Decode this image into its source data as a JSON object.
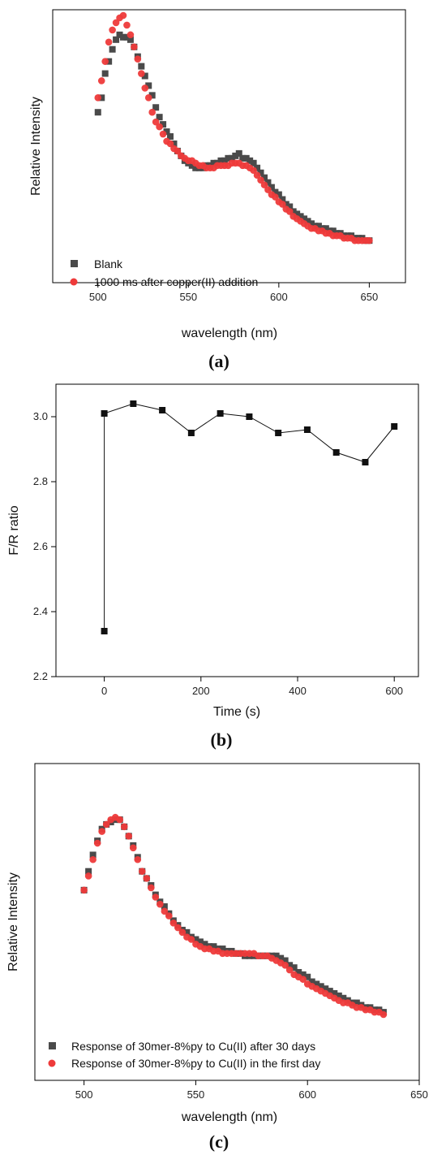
{
  "colors": {
    "blank_series": "#4a4a4a",
    "copper_series": "#ee3a3a",
    "ratio_series": "#111111",
    "axis": "#000000"
  },
  "chart_data": [
    {
      "panel": "(a)",
      "type": "scatter",
      "xlabel": "wavelength (nm)",
      "ylabel": "Relative Intensity",
      "xlim": [
        475,
        670
      ],
      "xticks": [
        "500",
        "550",
        "600",
        "650"
      ],
      "y_ticks_shown": false,
      "ylim": [
        0,
        1.0
      ],
      "legend_position": "bottom-left",
      "series": [
        {
          "name": "Blank",
          "marker": "square",
          "x": [
            500,
            502,
            504,
            506,
            508,
            510,
            512,
            514,
            516,
            518,
            520,
            522,
            524,
            526,
            528,
            530,
            532,
            534,
            536,
            538,
            540,
            542,
            544,
            546,
            548,
            550,
            552,
            554,
            556,
            558,
            560,
            562,
            564,
            566,
            568,
            570,
            572,
            574,
            576,
            578,
            580,
            582,
            584,
            586,
            588,
            590,
            592,
            594,
            596,
            598,
            600,
            602,
            604,
            606,
            608,
            610,
            612,
            614,
            616,
            618,
            620,
            622,
            624,
            626,
            628,
            630,
            632,
            634,
            636,
            638,
            640,
            642,
            644,
            646,
            648,
            650
          ],
          "y": [
            0.61,
            0.67,
            0.77,
            0.82,
            0.87,
            0.91,
            0.93,
            0.92,
            0.92,
            0.91,
            0.88,
            0.84,
            0.8,
            0.76,
            0.72,
            0.68,
            0.63,
            0.59,
            0.56,
            0.53,
            0.51,
            0.48,
            0.45,
            0.43,
            0.41,
            0.4,
            0.39,
            0.38,
            0.38,
            0.38,
            0.39,
            0.39,
            0.4,
            0.4,
            0.41,
            0.41,
            0.42,
            0.42,
            0.43,
            0.44,
            0.42,
            0.42,
            0.41,
            0.4,
            0.38,
            0.36,
            0.34,
            0.32,
            0.3,
            0.28,
            0.27,
            0.25,
            0.23,
            0.22,
            0.2,
            0.19,
            0.18,
            0.17,
            0.16,
            0.15,
            0.14,
            0.14,
            0.13,
            0.13,
            0.12,
            0.12,
            0.11,
            0.11,
            0.1,
            0.1,
            0.1,
            0.09,
            0.09,
            0.09,
            0.08,
            0.08
          ]
        },
        {
          "name": "1000 ms after copper(II) addition",
          "marker": "circle",
          "x": [
            500,
            502,
            504,
            506,
            508,
            510,
            512,
            514,
            516,
            518,
            520,
            522,
            524,
            526,
            528,
            530,
            532,
            534,
            536,
            538,
            540,
            542,
            544,
            546,
            548,
            550,
            552,
            554,
            556,
            558,
            560,
            562,
            564,
            566,
            568,
            570,
            572,
            574,
            576,
            578,
            580,
            582,
            584,
            586,
            588,
            590,
            592,
            594,
            596,
            598,
            600,
            602,
            604,
            606,
            608,
            610,
            612,
            614,
            616,
            618,
            620,
            622,
            624,
            626,
            628,
            630,
            632,
            634,
            636,
            638,
            640,
            642,
            644,
            646,
            648,
            650
          ],
          "y": [
            0.67,
            0.74,
            0.82,
            0.9,
            0.95,
            0.98,
            1.0,
            1.01,
            0.97,
            0.93,
            0.88,
            0.83,
            0.77,
            0.71,
            0.67,
            0.61,
            0.57,
            0.55,
            0.52,
            0.49,
            0.48,
            0.46,
            0.45,
            0.43,
            0.42,
            0.41,
            0.41,
            0.4,
            0.39,
            0.39,
            0.38,
            0.38,
            0.38,
            0.39,
            0.39,
            0.39,
            0.39,
            0.4,
            0.4,
            0.4,
            0.39,
            0.39,
            0.38,
            0.37,
            0.35,
            0.33,
            0.31,
            0.29,
            0.27,
            0.26,
            0.24,
            0.23,
            0.21,
            0.2,
            0.18,
            0.17,
            0.16,
            0.15,
            0.14,
            0.13,
            0.13,
            0.12,
            0.12,
            0.11,
            0.11,
            0.1,
            0.1,
            0.1,
            0.09,
            0.09,
            0.09,
            0.08,
            0.08,
            0.08,
            0.08,
            0.08
          ]
        }
      ]
    },
    {
      "panel": "(b)",
      "type": "line",
      "xlabel": "Time (s)",
      "ylabel": "F/R ratio",
      "xlim": [
        -100,
        650
      ],
      "ylim": [
        2.2,
        3.1
      ],
      "xticks": [
        "0",
        "200",
        "400",
        "600"
      ],
      "xtick_values": [
        0,
        200,
        400,
        600
      ],
      "yticks": [
        "2.2",
        "2.4",
        "2.6",
        "2.8",
        "3.0"
      ],
      "ytick_values": [
        2.2,
        2.4,
        2.6,
        2.8,
        3.0
      ],
      "series": [
        {
          "marker": "square",
          "x": [
            0,
            0,
            60,
            120,
            180,
            240,
            300,
            360,
            420,
            480,
            540,
            600
          ],
          "y": [
            2.34,
            3.01,
            3.04,
            3.02,
            2.95,
            3.01,
            3.0,
            2.95,
            2.96,
            2.89,
            2.86,
            2.97
          ]
        }
      ]
    },
    {
      "panel": "(c)",
      "type": "scatter",
      "xlabel": "wavelength  (nm)",
      "ylabel": "Relative Intensity",
      "xlim": [
        478,
        650
      ],
      "xticks": [
        "500",
        "550",
        "600",
        "650"
      ],
      "y_ticks_shown": false,
      "ylim": [
        0,
        1.0
      ],
      "legend_position": "bottom-left",
      "series": [
        {
          "name": "Response of 30mer-8%py to Cu(II) after 30 days",
          "marker": "square",
          "x": [
            500,
            502,
            504,
            506,
            508,
            510,
            512,
            514,
            516,
            518,
            520,
            522,
            524,
            526,
            528,
            530,
            532,
            534,
            536,
            538,
            540,
            542,
            544,
            546,
            548,
            550,
            552,
            554,
            556,
            558,
            560,
            562,
            564,
            566,
            568,
            570,
            572,
            574,
            576,
            578,
            580,
            582,
            584,
            586,
            588,
            590,
            592,
            594,
            596,
            598,
            600,
            602,
            604,
            606,
            608,
            610,
            612,
            614,
            616,
            618,
            620,
            622,
            624,
            626,
            628,
            630,
            632,
            634
          ],
          "y": [
            0.62,
            0.7,
            0.77,
            0.83,
            0.88,
            0.9,
            0.91,
            0.92,
            0.92,
            0.89,
            0.85,
            0.81,
            0.76,
            0.7,
            0.67,
            0.64,
            0.6,
            0.57,
            0.55,
            0.52,
            0.49,
            0.47,
            0.45,
            0.44,
            0.42,
            0.41,
            0.4,
            0.39,
            0.38,
            0.38,
            0.37,
            0.37,
            0.36,
            0.36,
            0.35,
            0.35,
            0.34,
            0.34,
            0.34,
            0.34,
            0.34,
            0.34,
            0.34,
            0.34,
            0.33,
            0.32,
            0.3,
            0.29,
            0.27,
            0.26,
            0.25,
            0.23,
            0.22,
            0.21,
            0.2,
            0.19,
            0.18,
            0.17,
            0.16,
            0.15,
            0.14,
            0.14,
            0.13,
            0.12,
            0.12,
            0.11,
            0.11,
            0.1
          ]
        },
        {
          "name": "Response of 30mer-8%py to Cu(II) in the first day",
          "marker": "circle",
          "x": [
            500,
            502,
            504,
            506,
            508,
            510,
            512,
            514,
            516,
            518,
            520,
            522,
            524,
            526,
            528,
            530,
            532,
            534,
            536,
            538,
            540,
            542,
            544,
            546,
            548,
            550,
            552,
            554,
            556,
            558,
            560,
            562,
            564,
            566,
            568,
            570,
            572,
            574,
            576,
            578,
            580,
            582,
            584,
            586,
            588,
            590,
            592,
            594,
            596,
            598,
            600,
            602,
            604,
            606,
            608,
            610,
            612,
            614,
            616,
            618,
            620,
            622,
            624,
            626,
            628,
            630,
            632,
            634
          ],
          "y": [
            0.62,
            0.68,
            0.75,
            0.82,
            0.87,
            0.9,
            0.92,
            0.93,
            0.92,
            0.89,
            0.85,
            0.8,
            0.75,
            0.7,
            0.67,
            0.63,
            0.59,
            0.56,
            0.53,
            0.51,
            0.48,
            0.46,
            0.44,
            0.42,
            0.41,
            0.39,
            0.38,
            0.37,
            0.37,
            0.36,
            0.36,
            0.35,
            0.35,
            0.35,
            0.35,
            0.35,
            0.35,
            0.35,
            0.35,
            0.34,
            0.34,
            0.34,
            0.33,
            0.32,
            0.31,
            0.3,
            0.28,
            0.26,
            0.25,
            0.24,
            0.22,
            0.21,
            0.2,
            0.19,
            0.18,
            0.17,
            0.16,
            0.15,
            0.14,
            0.14,
            0.13,
            0.12,
            0.12,
            0.11,
            0.11,
            0.1,
            0.1,
            0.09
          ]
        }
      ]
    }
  ]
}
